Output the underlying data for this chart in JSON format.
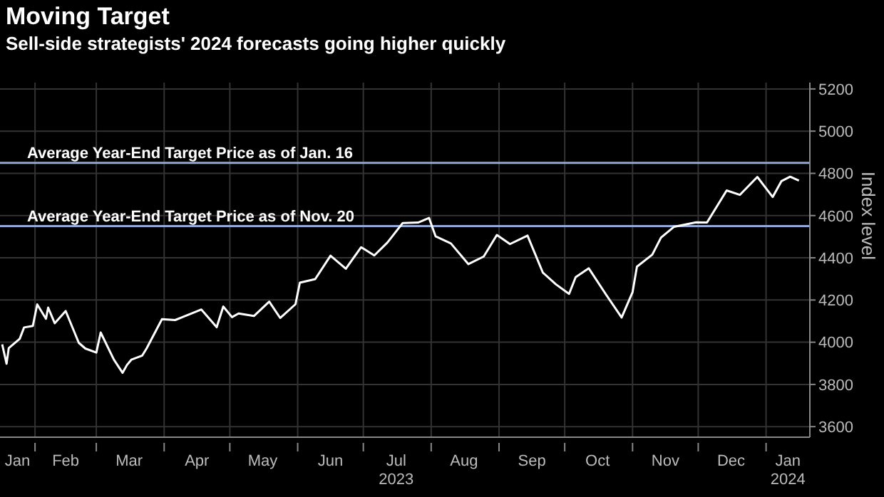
{
  "chart_data": {
    "type": "line",
    "title": "Moving Target",
    "subtitle": "Sell-side strategists' 2024 forecasts going higher quickly",
    "ylabel": "Index level",
    "x": [
      "2023-01-17",
      "2023-01-19",
      "2023-01-20",
      "2023-01-25",
      "2023-01-27",
      "2023-01-31",
      "2023-02-02",
      "2023-02-06",
      "2023-02-07",
      "2023-02-10",
      "2023-02-14",
      "2023-02-15",
      "2023-02-21",
      "2023-02-24",
      "2023-03-01",
      "2023-03-03",
      "2023-03-09",
      "2023-03-13",
      "2023-03-15",
      "2023-03-17",
      "2023-03-22",
      "2023-03-24",
      "2023-03-31",
      "2023-04-06",
      "2023-04-14",
      "2023-04-18",
      "2023-04-25",
      "2023-04-28",
      "2023-05-02",
      "2023-05-05",
      "2023-05-12",
      "2023-05-19",
      "2023-05-24",
      "2023-05-31",
      "2023-06-02",
      "2023-06-09",
      "2023-06-16",
      "2023-06-23",
      "2023-06-30",
      "2023-07-06",
      "2023-07-12",
      "2023-07-19",
      "2023-07-26",
      "2023-07-31",
      "2023-08-03",
      "2023-08-10",
      "2023-08-18",
      "2023-08-25",
      "2023-08-31",
      "2023-09-06",
      "2023-09-14",
      "2023-09-21",
      "2023-09-27",
      "2023-10-03",
      "2023-10-06",
      "2023-10-12",
      "2023-10-20",
      "2023-10-27",
      "2023-11-01",
      "2023-11-03",
      "2023-11-10",
      "2023-11-14",
      "2023-11-20",
      "2023-11-30",
      "2023-12-05",
      "2023-12-14",
      "2023-12-20",
      "2023-12-28",
      "2024-01-04",
      "2024-01-08",
      "2024-01-12",
      "2024-01-16"
    ],
    "series": [
      {
        "color": "#ffffff",
        "values": [
          3990,
          3898,
          3972,
          4016,
          4070,
          4077,
          4179,
          4111,
          4164,
          4090,
          4136,
          4148,
          3997,
          3970,
          3951,
          4046,
          3918,
          3855,
          3892,
          3917,
          3937,
          3971,
          4109,
          4105,
          4138,
          4155,
          4071,
          4169,
          4119,
          4136,
          4124,
          4192,
          4115,
          4180,
          4282,
          4299,
          4410,
          4348,
          4450,
          4411,
          4472,
          4565,
          4567,
          4589,
          4502,
          4468,
          4370,
          4406,
          4508,
          4465,
          4505,
          4330,
          4274,
          4229,
          4308,
          4350,
          4224,
          4117,
          4237,
          4358,
          4415,
          4496,
          4547,
          4568,
          4567,
          4719,
          4698,
          4783,
          4688,
          4763,
          4784,
          4766
        ]
      }
    ],
    "xlim": [
      "2023-01-16",
      "2024-01-21"
    ],
    "xticks": [
      {
        "value": "2023-01-24",
        "label": "Jan"
      },
      {
        "value": "2023-02-01",
        "label": null
      },
      {
        "value": "2023-02-15",
        "label": "Feb"
      },
      {
        "value": "2023-03-01",
        "label": null
      },
      {
        "value": "2023-03-16",
        "label": "Mar"
      },
      {
        "value": "2023-04-01",
        "label": null
      },
      {
        "value": "2023-04-16",
        "label": "Apr"
      },
      {
        "value": "2023-05-01",
        "label": null
      },
      {
        "value": "2023-05-16",
        "label": "May"
      },
      {
        "value": "2023-06-01",
        "label": null
      },
      {
        "value": "2023-06-16",
        "label": "Jun"
      },
      {
        "value": "2023-07-01",
        "label": null
      },
      {
        "value": "2023-07-16",
        "label": "Jul\n2023"
      },
      {
        "value": "2023-08-01",
        "label": null
      },
      {
        "value": "2023-08-16",
        "label": "Aug"
      },
      {
        "value": "2023-09-01",
        "label": null
      },
      {
        "value": "2023-09-16",
        "label": "Sep"
      },
      {
        "value": "2023-10-01",
        "label": null
      },
      {
        "value": "2023-10-16",
        "label": "Oct"
      },
      {
        "value": "2023-11-01",
        "label": null
      },
      {
        "value": "2023-11-16",
        "label": "Nov"
      },
      {
        "value": "2023-12-01",
        "label": null
      },
      {
        "value": "2023-12-16",
        "label": "Dec"
      },
      {
        "value": "2024-01-01",
        "label": null
      },
      {
        "value": "2024-01-11",
        "label": "Jan\n2024"
      }
    ],
    "ylim": [
      3550,
      5230
    ],
    "yticks": [
      3600,
      3800,
      4000,
      4200,
      4400,
      4600,
      4800,
      5000,
      5200
    ],
    "ref_lines": [
      {
        "axis": "y",
        "value": 4850,
        "label": "Average Year-End Target Price as of Jan. 16",
        "color": "#8fa8d8"
      },
      {
        "axis": "y",
        "value": 4550,
        "label": "Average Year-End Target Price as of Nov. 20",
        "color": "#8fa8d8"
      }
    ],
    "grid": true,
    "legend": false,
    "marker": "none",
    "line_style": "solid"
  }
}
